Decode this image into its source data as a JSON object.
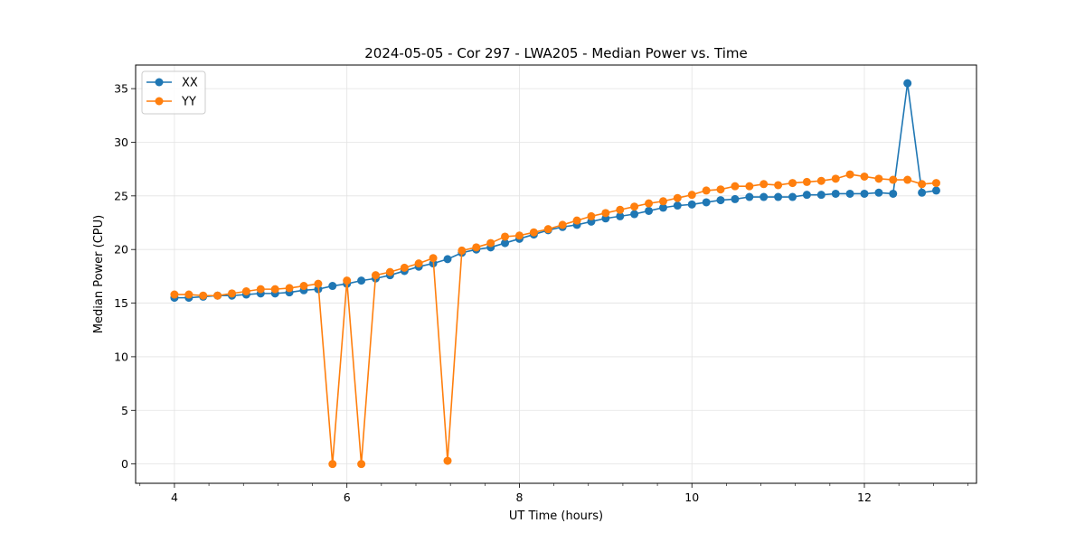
{
  "chart_data": {
    "type": "line",
    "title": "2024-05-05 - Cor 297 - LWA205 - Median Power vs. Time",
    "xlabel": "UT Time (hours)",
    "ylabel": "Median Power (CPU)",
    "xlim": [
      3.55,
      13.3
    ],
    "ylim": [
      -1.8,
      37.2
    ],
    "xticks": [
      4,
      6,
      8,
      10,
      12
    ],
    "xtick_labels": [
      "4",
      "6",
      "8",
      "10",
      "12"
    ],
    "yticks": [
      0,
      5,
      10,
      15,
      20,
      25,
      30,
      35
    ],
    "ytick_labels": [
      "0",
      "5",
      "10",
      "15",
      "20",
      "25",
      "30",
      "35"
    ],
    "grid": true,
    "legend_position": "upper-left",
    "x": [
      4.0,
      4.167,
      4.333,
      4.5,
      4.667,
      4.833,
      5.0,
      5.167,
      5.333,
      5.5,
      5.667,
      5.833,
      6.0,
      6.167,
      6.333,
      6.5,
      6.667,
      6.833,
      7.0,
      7.167,
      7.333,
      7.5,
      7.667,
      7.833,
      8.0,
      8.167,
      8.333,
      8.5,
      8.667,
      8.833,
      9.0,
      9.167,
      9.333,
      9.5,
      9.667,
      9.833,
      10.0,
      10.167,
      10.333,
      10.5,
      10.667,
      10.833,
      11.0,
      11.167,
      11.333,
      11.5,
      11.667,
      11.833,
      12.0,
      12.167,
      12.333,
      12.5,
      12.667,
      12.833
    ],
    "series": [
      {
        "name": "XX",
        "color": "#1f77b4",
        "values": [
          15.5,
          15.5,
          15.6,
          15.7,
          15.7,
          15.8,
          15.9,
          15.9,
          16.0,
          16.2,
          16.3,
          16.6,
          16.8,
          17.1,
          17.3,
          17.6,
          18.0,
          18.4,
          18.7,
          19.1,
          19.7,
          20.0,
          20.2,
          20.6,
          21.0,
          21.4,
          21.8,
          22.1,
          22.3,
          22.6,
          22.9,
          23.1,
          23.3,
          23.6,
          23.9,
          24.1,
          24.2,
          24.4,
          24.6,
          24.7,
          24.9,
          24.9,
          24.9,
          24.9,
          25.1,
          25.1,
          25.2,
          25.2,
          25.2,
          25.3,
          25.2,
          35.5,
          25.3,
          25.5
        ]
      },
      {
        "name": "YY",
        "color": "#ff7f0e",
        "values": [
          15.8,
          15.8,
          15.7,
          15.7,
          15.9,
          16.1,
          16.3,
          16.3,
          16.4,
          16.6,
          16.8,
          0.0,
          17.1,
          0.0,
          17.6,
          17.9,
          18.3,
          18.7,
          19.2,
          0.3,
          19.9,
          20.2,
          20.6,
          21.2,
          21.3,
          21.6,
          21.9,
          22.3,
          22.7,
          23.1,
          23.4,
          23.7,
          24.0,
          24.3,
          24.5,
          24.8,
          25.1,
          25.5,
          25.6,
          25.9,
          25.9,
          26.1,
          26.0,
          26.2,
          26.3,
          26.4,
          26.6,
          27.0,
          26.8,
          26.6,
          26.5,
          26.5,
          26.1,
          26.2
        ]
      }
    ]
  }
}
